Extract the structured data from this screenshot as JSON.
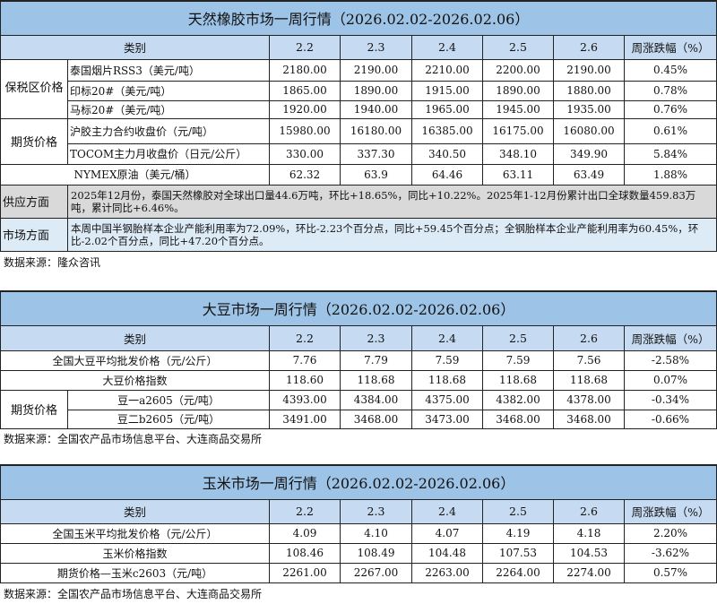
{
  "rubber": {
    "title": "天然橡胶市场一周行情（2026.02.02-2026.02.06）",
    "headers": [
      "类别",
      "2.2",
      "2.3",
      "2.4",
      "2.5",
      "2.6",
      "周涨跌幅（%）"
    ],
    "group_bonded": "保税区价格",
    "group_futures": "期货价格",
    "rows": [
      {
        "label": "泰国烟片RSS3（美元/吨）",
        "values": [
          "2180.00",
          "2190.00",
          "2210.00",
          "2200.00",
          "2190.00",
          "0.45%"
        ]
      },
      {
        "label": "印标20#（美元/吨）",
        "values": [
          "1865.00",
          "1890.00",
          "1915.00",
          "1890.00",
          "1880.00",
          "0.78%"
        ]
      },
      {
        "label": "马标20#（美元/吨）",
        "values": [
          "1920.00",
          "1940.00",
          "1965.00",
          "1945.00",
          "1935.00",
          "0.76%"
        ]
      },
      {
        "label": "沪胶主力合约收盘价（元/吨）",
        "values": [
          "15980.00",
          "16180.00",
          "16385.00",
          "16175.00",
          "16080.00",
          "0.61%"
        ]
      },
      {
        "label": "TOCOM主力月收盘价（日元/公斤）",
        "values": [
          "330.00",
          "337.30",
          "340.50",
          "348.10",
          "349.90",
          "5.84%"
        ]
      },
      {
        "label": "NYMEX原油（美元/桶）",
        "values": [
          "62.32",
          "63.9",
          "64.46",
          "63.11",
          "63.49",
          "1.88%"
        ]
      }
    ],
    "supply_label": "供应方面",
    "supply_text": "2025年12月份，泰国天然橡胶对全球出口量44.6万吨，环比+18.65%，同比+10.22%。2025年1-12月份累计出口全球数量459.83万吨，累计同比+6.46%。",
    "market_label": "市场方面",
    "market_text": "本周中国半钢胎样本企业产能利用率为72.09%，环比-2.23个百分点，同比+59.45个百分点；全钢胎样本企业产能利用率为60.45%，环比-2.02个百分点，同比+47.20个百分点。",
    "source": "数据来源：隆众咨讯"
  },
  "soy": {
    "title": "大豆市场一周行情（2026.02.02-2026.02.06）",
    "headers": [
      "类别",
      "2.2",
      "2.3",
      "2.4",
      "2.5",
      "2.6",
      "周涨跌幅（%）"
    ],
    "group_futures": "期货价格",
    "rows": [
      {
        "label": "全国大豆平均批发价格（元/公斤）",
        "values": [
          "7.76",
          "7.79",
          "7.59",
          "7.59",
          "7.56",
          "-2.58%"
        ]
      },
      {
        "label": "大豆价格指数",
        "values": [
          "118.60",
          "118.68",
          "118.68",
          "118.68",
          "118.68",
          "0.07%"
        ]
      },
      {
        "label": "豆一a2605（元/吨）",
        "values": [
          "4393.00",
          "4384.00",
          "4375.00",
          "4382.00",
          "4378.00",
          "-0.34%"
        ]
      },
      {
        "label": "豆二b2605（元/吨）",
        "values": [
          "3491.00",
          "3468.00",
          "3473.00",
          "3468.00",
          "3468.00",
          "-0.66%"
        ]
      }
    ],
    "source": "数据来源：全国农产品市场信息平台、大连商品交易所"
  },
  "corn": {
    "title": "玉米市场一周行情（2026.02.02-2026.02.06）",
    "headers": [
      "类别",
      "2.2",
      "2.3",
      "2.4",
      "2.5",
      "2.6",
      "周涨跌幅（%）"
    ],
    "rows": [
      {
        "label": "全国玉米平均批发价格（元/公斤）",
        "values": [
          "4.09",
          "4.10",
          "4.07",
          "4.19",
          "4.18",
          "2.20%"
        ]
      },
      {
        "label": "玉米价格指数",
        "values": [
          "108.46",
          "108.49",
          "104.48",
          "107.53",
          "104.53",
          "-3.62%"
        ]
      },
      {
        "label": "期货价格—玉米c2603（元/吨）",
        "values": [
          "2261.00",
          "2267.00",
          "2263.00",
          "2264.00",
          "2274.00",
          "0.57%"
        ]
      }
    ],
    "source": "数据来源：全国农产品市场信息平台、大连商品交易所"
  }
}
